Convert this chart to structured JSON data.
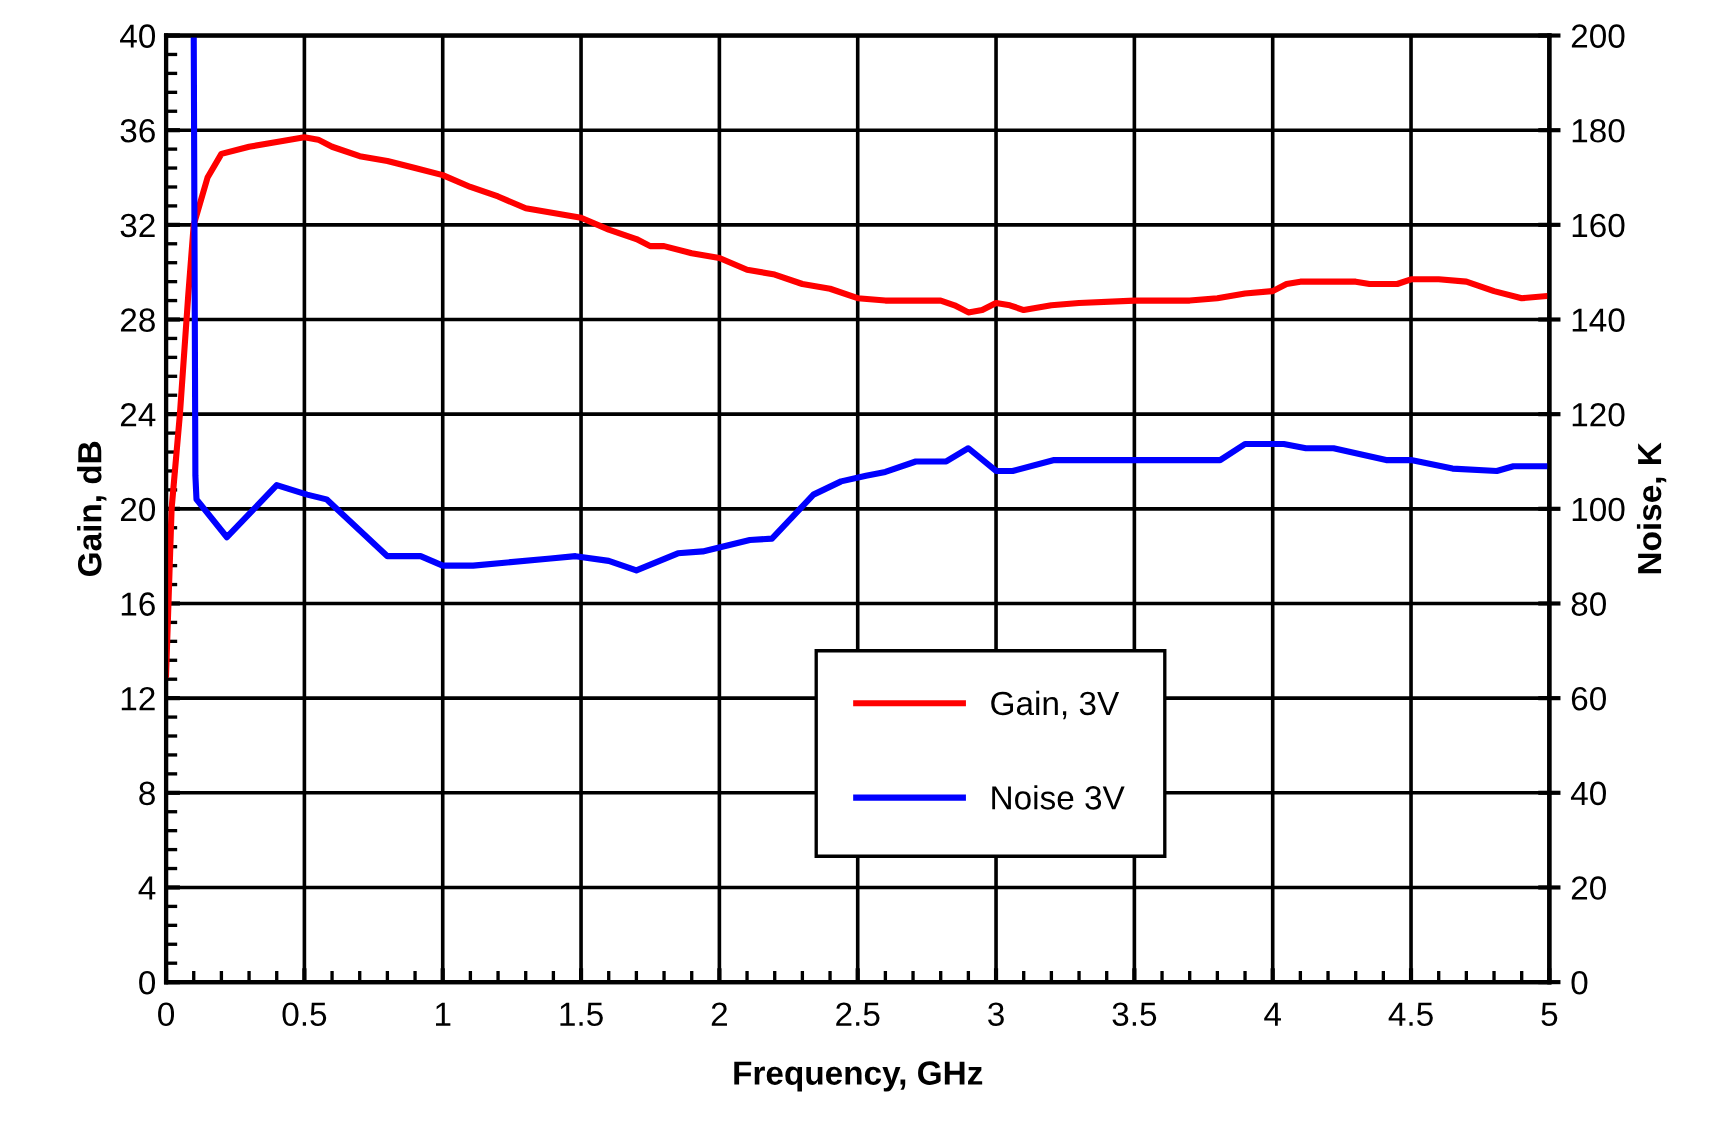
{
  "chart_data": {
    "type": "line",
    "xlabel": "Frequency, GHz",
    "ylabel": "Gain, dB",
    "y2label": "Noise, K",
    "xlim": [
      0,
      5
    ],
    "ylim": [
      0,
      40
    ],
    "y2lim": [
      0,
      200
    ],
    "xticks": [
      0,
      {
        "value": 0.1,
        "label": null
      },
      {
        "value": 0.2,
        "label": null
      },
      {
        "value": 0.3,
        "label": null
      },
      {
        "value": 0.4,
        "label": null
      },
      0.5,
      {
        "value": 0.6,
        "label": null
      },
      {
        "value": 0.7,
        "label": null
      },
      {
        "value": 0.8,
        "label": null
      },
      {
        "value": 0.9,
        "label": null
      },
      1,
      {
        "value": 1.1,
        "label": null
      },
      {
        "value": 1.2,
        "label": null
      },
      {
        "value": 1.3,
        "label": null
      },
      {
        "value": 1.4,
        "label": null
      },
      1.5,
      {
        "value": 1.6,
        "label": null
      },
      {
        "value": 1.7,
        "label": null
      },
      {
        "value": 1.8,
        "label": null
      },
      {
        "value": 1.9,
        "label": null
      },
      2,
      {
        "value": 2.1,
        "label": null
      },
      {
        "value": 2.2,
        "label": null
      },
      {
        "value": 2.3,
        "label": null
      },
      {
        "value": 2.4,
        "label": null
      },
      2.5,
      {
        "value": 2.6,
        "label": null
      },
      {
        "value": 2.7,
        "label": null
      },
      {
        "value": 2.8,
        "label": null
      },
      {
        "value": 2.9,
        "label": null
      },
      3,
      {
        "value": 3.1,
        "label": null
      },
      {
        "value": 3.2,
        "label": null
      },
      {
        "value": 3.3,
        "label": null
      },
      {
        "value": 3.4,
        "label": null
      },
      3.5,
      {
        "value": 3.6,
        "label": null
      },
      {
        "value": 3.7,
        "label": null
      },
      {
        "value": 3.8,
        "label": null
      },
      {
        "value": 3.9,
        "label": null
      },
      4,
      {
        "value": 4.1,
        "label": null
      },
      {
        "value": 4.2,
        "label": null
      },
      {
        "value": 4.3,
        "label": null
      },
      {
        "value": 4.4,
        "label": null
      },
      4.5,
      {
        "value": 4.6,
        "label": null
      },
      {
        "value": 4.7,
        "label": null
      },
      {
        "value": 4.8,
        "label": null
      },
      {
        "value": 4.9,
        "label": null
      },
      5
    ],
    "yticks": [
      0,
      {
        "value": 0.8,
        "label": null
      },
      {
        "value": 1.6,
        "label": null
      },
      {
        "value": 2.4,
        "label": null
      },
      {
        "value": 3.2,
        "label": null
      },
      4,
      {
        "value": 4.8,
        "label": null
      },
      {
        "value": 5.6,
        "label": null
      },
      {
        "value": 6.4,
        "label": null
      },
      {
        "value": 7.2,
        "label": null
      },
      8,
      {
        "value": 8.8,
        "label": null
      },
      {
        "value": 9.6,
        "label": null
      },
      {
        "value": 10.4,
        "label": null
      },
      {
        "value": 11.2,
        "label": null
      },
      12,
      {
        "value": 12.8,
        "label": null
      },
      {
        "value": 13.6,
        "label": null
      },
      {
        "value": 14.4,
        "label": null
      },
      {
        "value": 15.2,
        "label": null
      },
      16,
      {
        "value": 16.8,
        "label": null
      },
      {
        "value": 17.6,
        "label": null
      },
      {
        "value": 18.4,
        "label": null
      },
      {
        "value": 19.2,
        "label": null
      },
      20,
      {
        "value": 20.8,
        "label": null
      },
      {
        "value": 21.6,
        "label": null
      },
      {
        "value": 22.4,
        "label": null
      },
      {
        "value": 23.2,
        "label": null
      },
      24,
      {
        "value": 24.8,
        "label": null
      },
      {
        "value": 25.6,
        "label": null
      },
      {
        "value": 26.4,
        "label": null
      },
      {
        "value": 27.2,
        "label": null
      },
      28,
      {
        "value": 28.8,
        "label": null
      },
      {
        "value": 29.6,
        "label": null
      },
      {
        "value": 30.4,
        "label": null
      },
      {
        "value": 31.2,
        "label": null
      },
      32,
      {
        "value": 32.8,
        "label": null
      },
      {
        "value": 33.6,
        "label": null
      },
      {
        "value": 34.4,
        "label": null
      },
      {
        "value": 35.2,
        "label": null
      },
      36,
      {
        "value": 36.8,
        "label": null
      },
      {
        "value": 37.6,
        "label": null
      },
      {
        "value": 38.4,
        "label": null
      },
      {
        "value": 39.2,
        "label": null
      },
      40
    ],
    "y2ticks": [
      0,
      20,
      40,
      60,
      80,
      100,
      120,
      140,
      160,
      180,
      200
    ],
    "grid": true,
    "legend": "center",
    "marker": "none",
    "line_style": "solid",
    "series": [
      {
        "name": "Gain, 3V",
        "color": "#ff0000",
        "x": [
          0,
          0.02,
          0.05,
          0.08,
          0.1,
          0.15,
          0.2,
          0.3,
          0.4,
          0.5,
          0.55,
          0.6,
          0.7,
          0.8,
          0.9,
          1.0,
          1.1,
          1.2,
          1.3,
          1.4,
          1.5,
          1.6,
          1.7,
          1.75,
          1.8,
          1.9,
          2.0,
          2.1,
          2.2,
          2.3,
          2.4,
          2.5,
          2.6,
          2.8,
          2.85,
          2.9,
          2.95,
          3.0,
          3.05,
          3.1,
          3.2,
          3.3,
          3.5,
          3.7,
          3.8,
          3.9,
          4.0,
          4.05,
          4.1,
          4.3,
          4.35,
          4.45,
          4.5,
          4.6,
          4.7,
          4.8,
          4.9,
          5.0
        ],
        "values": [
          13,
          20,
          24,
          29,
          32,
          34,
          35,
          35.3,
          35.5,
          35.7,
          35.6,
          35.3,
          34.9,
          34.7,
          34.4,
          34.1,
          33.6,
          33.2,
          32.7,
          32.5,
          32.3,
          31.8,
          31.4,
          31.1,
          31.1,
          30.8,
          30.6,
          30.1,
          29.9,
          29.5,
          29.3,
          28.9,
          28.8,
          28.8,
          28.6,
          28.3,
          28.4,
          28.7,
          28.6,
          28.4,
          28.6,
          28.7,
          28.8,
          28.8,
          28.9,
          29.1,
          29.2,
          29.5,
          29.6,
          29.6,
          29.5,
          29.5,
          29.7,
          29.7,
          29.6,
          29.2,
          28.9,
          29.0
        ]
      },
      {
        "name": "Noise 3V",
        "color": "#0000ff",
        "axis": "y2",
        "x": [
          0.1,
          0.106,
          0.11,
          0.22,
          0.4,
          0.51,
          0.58,
          0.8,
          0.92,
          1.0,
          1.11,
          1.39,
          1.48,
          1.6,
          1.7,
          1.85,
          1.94,
          2.11,
          2.19,
          2.34,
          2.44,
          2.53,
          2.6,
          2.71,
          2.82,
          2.9,
          3.0,
          3.06,
          3.21,
          3.81,
          3.9,
          4.04,
          4.12,
          4.22,
          4.41,
          4.5,
          4.65,
          4.81,
          4.87,
          5.0
        ],
        "values": [
          200,
          107,
          102,
          94,
          105,
          103,
          102,
          90,
          90,
          88,
          88,
          89.5,
          90,
          89,
          87,
          90.6,
          91,
          93.4,
          93.7,
          103,
          105.8,
          107,
          107.8,
          110,
          110,
          112.8,
          108,
          108,
          110.3,
          110.3,
          113.7,
          113.7,
          112.8,
          112.8,
          110.3,
          110.3,
          108.5,
          108,
          109,
          109
        ]
      }
    ]
  }
}
